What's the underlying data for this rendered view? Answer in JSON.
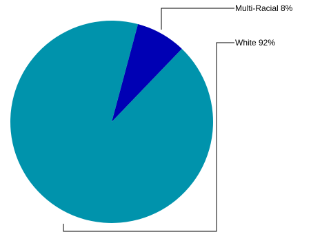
{
  "chart_data": {
    "type": "pie",
    "title": "",
    "slices": [
      {
        "label": "Multi-Racial",
        "value": 8,
        "display": "Multi-Racial 8%",
        "color": "#0000b4"
      },
      {
        "label": "White",
        "value": 92,
        "display": "White 92%",
        "color": "#0093ac"
      }
    ],
    "start_angle_deg": 15,
    "direction": "clockwise",
    "legend": "none",
    "labels_placement": "outside-right-with-leader-lines"
  }
}
